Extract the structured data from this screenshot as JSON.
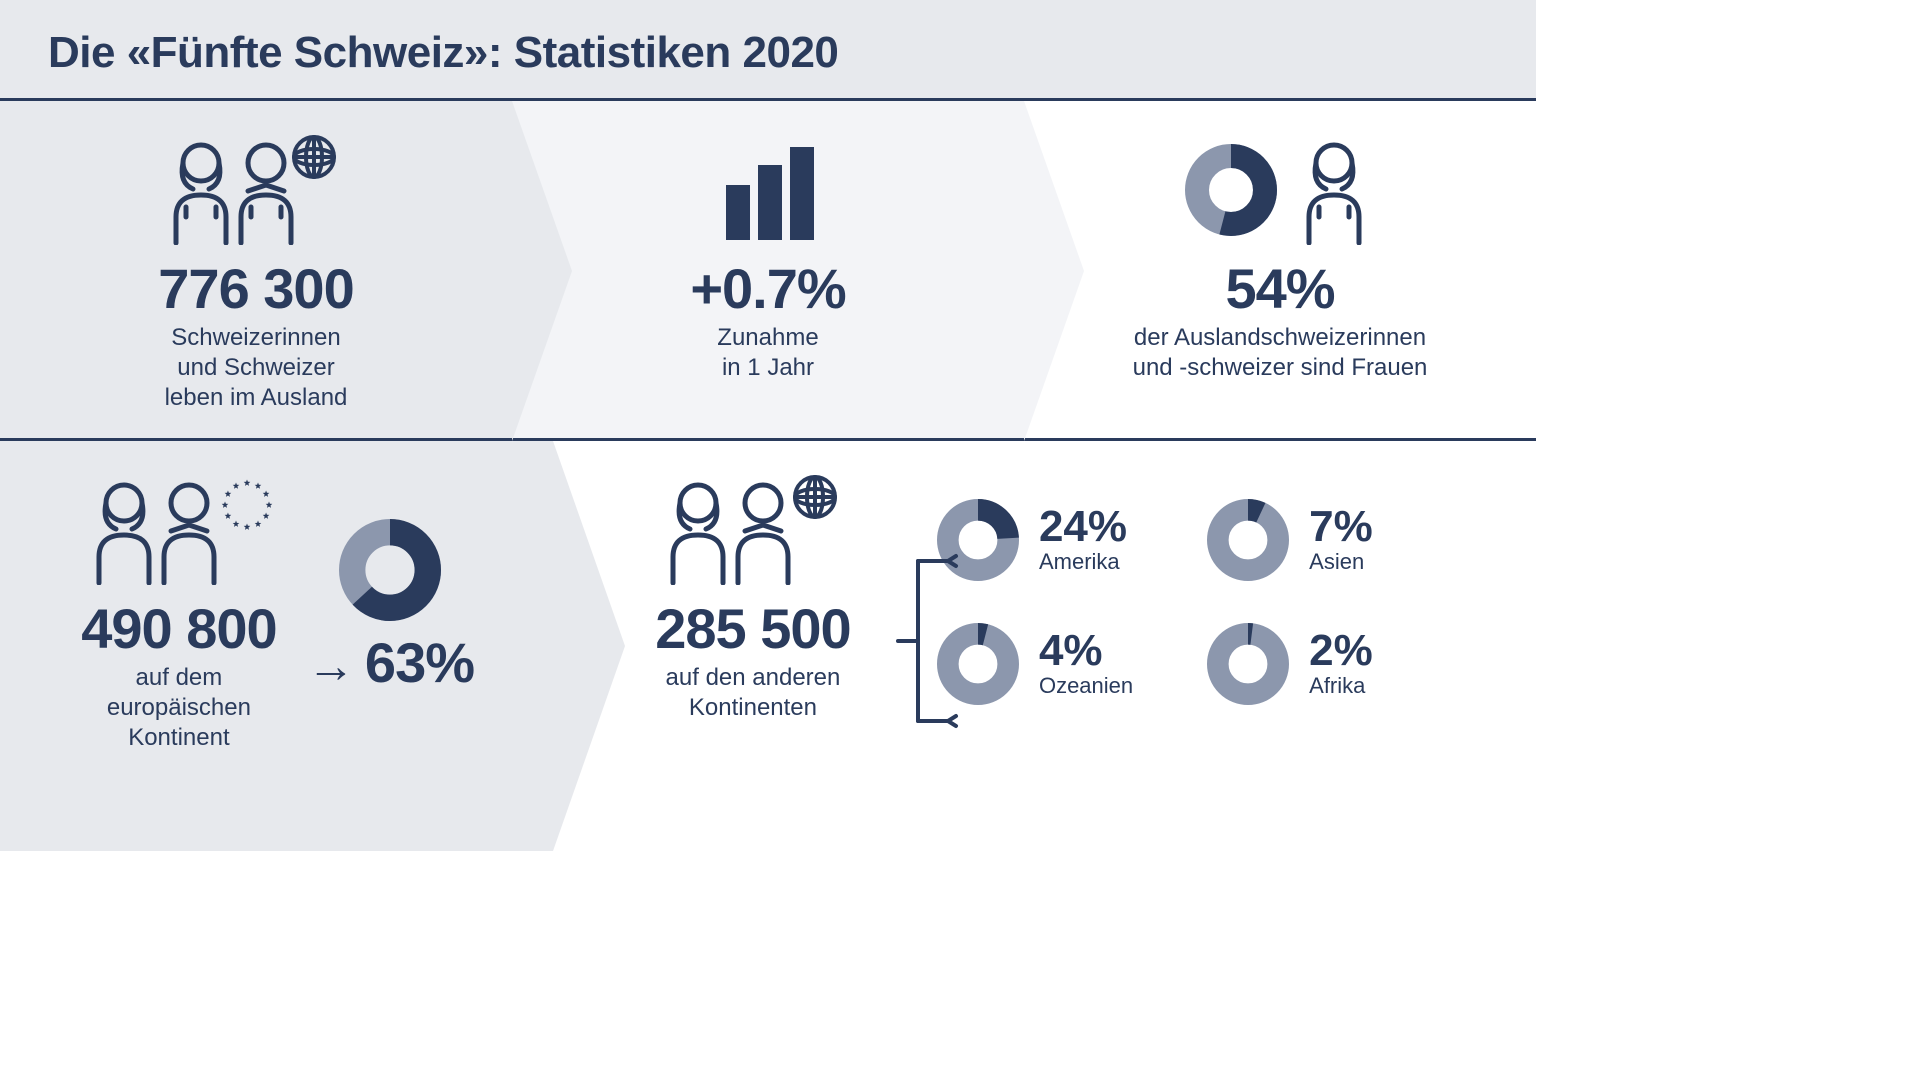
{
  "colors": {
    "primary": "#2a3b5c",
    "bg_light": "#e7e9ed",
    "bg_mid": "#f3f4f7",
    "bg_white": "#ffffff",
    "donut_track": "#8c97ad"
  },
  "typography": {
    "title_fontsize": 44,
    "stat_fontsize": 56,
    "sub_fontsize": 24,
    "break_pct_fontsize": 44,
    "break_lbl_fontsize": 22,
    "font_family": "Helvetica Neue, Arial, sans-serif"
  },
  "header": {
    "title": "Die «Fünfte Schweiz»: Statistiken 2020"
  },
  "row1": {
    "total": {
      "icon": "people-globe",
      "value": "776 300",
      "sub": "Schweizerinnen\nund Schweizer\nleben im Ausland"
    },
    "growth": {
      "icon": "bars",
      "value": "+0.7%",
      "sub": "Zunahme\nin 1 Jahr"
    },
    "women": {
      "icon": "donut-woman",
      "donut_pct": 54,
      "value": "54%",
      "sub": "der Auslandschweizerinnen\nund -schweizer sind Frauen"
    }
  },
  "row2": {
    "europe": {
      "icon": "people-eu-stars",
      "value": "490 800",
      "sub": "auf dem\neuropäischen\nKontinent",
      "arrow": "→",
      "donut_pct": 63,
      "pct_label": "63%"
    },
    "other": {
      "icon": "people-globe",
      "value": "285 500",
      "sub": "auf den anderen\nKontinenten",
      "breakdown": [
        {
          "label": "Amerika",
          "pct": 24,
          "pct_label": "24%"
        },
        {
          "label": "Asien",
          "pct": 7,
          "pct_label": "7%"
        },
        {
          "label": "Ozeanien",
          "pct": 4,
          "pct_label": "4%"
        },
        {
          "label": "Afrika",
          "pct": 2,
          "pct_label": "2%"
        }
      ]
    }
  }
}
